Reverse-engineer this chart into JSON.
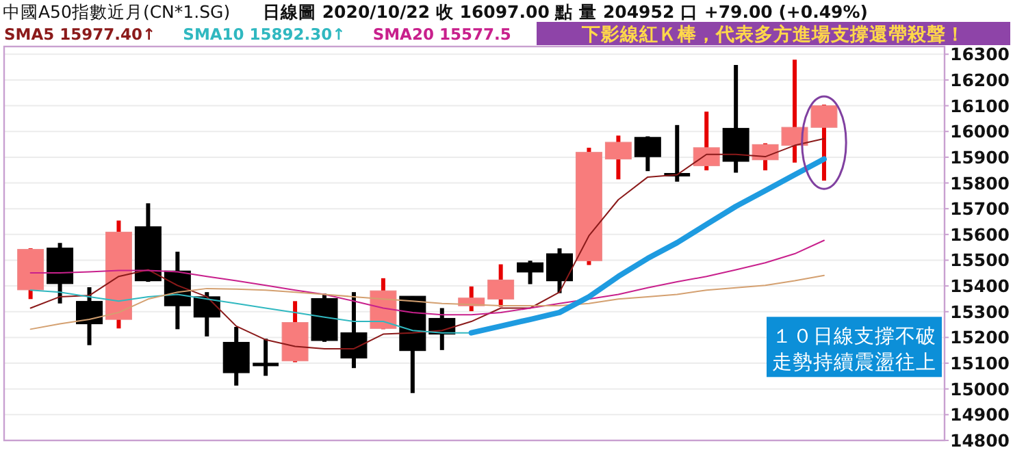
{
  "chart_data": {
    "type": "candlestick",
    "title": "中國A50指數近月(CN*1.SG)",
    "subtitle": "日線圖  2020/10/22  收 16097.00 點  量 204952 口  +79.00 (+0.49%)",
    "categories": [
      null,
      null,
      null,
      null,
      null,
      null,
      null,
      null,
      null,
      null,
      null,
      null,
      null,
      null,
      null,
      null,
      null,
      null,
      null,
      null,
      null,
      null,
      null,
      null,
      null,
      null,
      null,
      null
    ],
    "ohlc": [
      [
        15385,
        15546,
        15349,
        15542
      ],
      [
        15547,
        15567,
        15332,
        15409
      ],
      [
        15340,
        15395,
        15170,
        15253
      ],
      [
        15270,
        15654,
        15235,
        15609
      ],
      [
        15630,
        15721,
        15416,
        15420
      ],
      [
        15458,
        15533,
        15232,
        15323
      ],
      [
        15358,
        15376,
        15204,
        15279
      ],
      [
        15181,
        15241,
        15013,
        15063
      ],
      [
        15095,
        15195,
        15051,
        15095
      ],
      [
        15109,
        15341,
        15104,
        15258
      ],
      [
        15351,
        15370,
        15183,
        15188
      ],
      [
        15218,
        15376,
        15081,
        15120
      ],
      [
        15235,
        15430,
        15232,
        15381
      ],
      [
        15360,
        15360,
        14984,
        15149
      ],
      [
        15274,
        15314,
        15151,
        15213
      ],
      [
        15323,
        15398,
        15302,
        15353
      ],
      [
        15349,
        15484,
        15319,
        15423
      ],
      [
        15490,
        15498,
        15407,
        15454
      ],
      [
        15525,
        15546,
        15372,
        15420
      ],
      [
        15498,
        15937,
        15481,
        15919
      ],
      [
        15893,
        15984,
        15814,
        15958
      ],
      [
        15977,
        15981,
        15846,
        15902
      ],
      [
        15832,
        16025,
        15805,
        15832
      ],
      [
        15867,
        16077,
        15849,
        15937
      ],
      [
        16012,
        16258,
        15840,
        15884
      ],
      [
        15890,
        15954,
        15849,
        15949
      ],
      [
        15946,
        16279,
        15879,
        16016
      ],
      [
        16016,
        16104,
        15809,
        16100
      ]
    ],
    "colors": [
      "#f87c7c",
      "#000000",
      "#000000",
      "#f87c7c",
      "#000000",
      "#000000",
      "#000000",
      "#000000",
      "#000000",
      "#f87c7c",
      "#000000",
      "#000000",
      "#f87c7c",
      "#000000",
      "#000000",
      "#f87c7c",
      "#f87c7c",
      "#000000",
      "#000000",
      "#f87c7c",
      "#f87c7c",
      "#000000",
      "#000000",
      "#f87c7c",
      "#000000",
      "#f87c7c",
      "#f87c7c",
      "#f87c7c"
    ],
    "series": [
      {
        "type": "line",
        "name": "SMA5 15977.40↑",
        "color": "#8b1a1a",
        "values": [
          15314,
          15358,
          15363,
          15437,
          15463,
          15402,
          15358,
          15244,
          15191,
          15165,
          15156,
          15156,
          15213,
          15218,
          15227,
          15262,
          15314,
          15314,
          15376,
          15595,
          15735,
          15823,
          15832,
          15911,
          15911,
          15902,
          15946,
          15972
        ]
      },
      {
        "type": "line",
        "name": "SMA10 15892.30↑",
        "color": "#30b8c0",
        "values": [
          15384,
          15376,
          15358,
          15341,
          15358,
          15367,
          15349,
          15332,
          15314,
          15297,
          15279,
          15262,
          15262,
          15227,
          15218,
          15218,
          null,
          null,
          null,
          null,
          null,
          null,
          null,
          null,
          null,
          null,
          null,
          null
        ]
      },
      {
        "type": "line",
        "name": "SMA20 15577.5",
        "color": "#c8208c",
        "values": [
          15451,
          15451,
          15455,
          15460,
          15460,
          15455,
          15437,
          15420,
          15402,
          15384,
          15367,
          15341,
          15314,
          15297,
          15288,
          15288,
          15297,
          15314,
          15332,
          15349,
          15367,
          15393,
          15416,
          15437,
          15463,
          15490,
          15525,
          15577
        ]
      },
      {
        "type": "line",
        "color": "#d4a070",
        "values": [
          15232,
          15253,
          15270,
          15297,
          15349,
          15376,
          15390,
          15388,
          15384,
          15376,
          15367,
          15358,
          15349,
          15341,
          15332,
          15328,
          15323,
          15323,
          15323,
          15332,
          15349,
          15358,
          15367,
          15384,
          15393,
          15402,
          15420,
          15441
        ]
      },
      {
        "type": "line",
        "color": "#1e9be0",
        "values": [
          null,
          null,
          null,
          null,
          null,
          null,
          null,
          null,
          null,
          null,
          null,
          null,
          null,
          null,
          null,
          15218,
          15244,
          15270,
          15297,
          15358,
          15437,
          15507,
          15568,
          15639,
          15709,
          15770,
          15832,
          15893
        ]
      }
    ],
    "ylim": [
      14800,
      16330
    ],
    "yticks": [
      14800,
      14900,
      15000,
      15100,
      15200,
      15300,
      15400,
      15500,
      15600,
      15700,
      15800,
      15900,
      16000,
      16100,
      16200,
      16300
    ],
    "grid": "y",
    "legend": "top left",
    "annotations": [
      "下影線紅Ｋ棒，代表多方進場支撐還帶殺聲！",
      "１０日線支撐不破",
      "走勢持續震盪往上"
    ]
  }
}
